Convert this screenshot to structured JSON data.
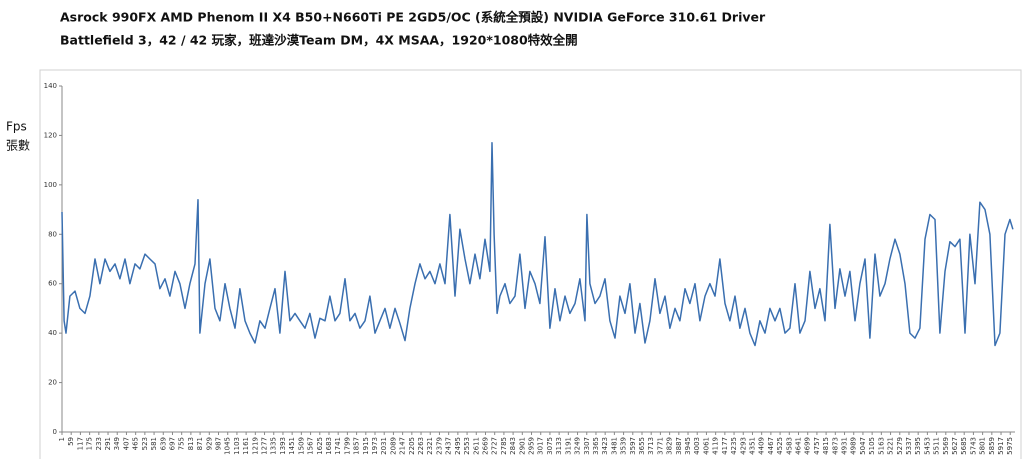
{
  "chart_data": {
    "type": "line",
    "title": "Asrock 990FX AMD Phenom II X4 B50+N660Ti PE 2GD5/OC (系統全預設) NVIDIA GeForce 310.61 Driver",
    "subtitle": "Battlefield 3，42 / 42 玩家，班達沙漠Team DM，4X MSAA，1920*1080特效全開",
    "ylabel": [
      "Fps",
      "張數"
    ],
    "xlim": [
      1,
      6005
    ],
    "ylim": [
      0,
      140
    ],
    "yticks": [
      0,
      20,
      40,
      60,
      80,
      100,
      120,
      140
    ],
    "xticks": [
      1,
      59,
      117,
      175,
      233,
      291,
      349,
      407,
      465,
      523,
      581,
      639,
      697,
      755,
      813,
      871,
      929,
      987,
      1045,
      1103,
      1161,
      1219,
      1277,
      1335,
      1393,
      1451,
      1509,
      1567,
      1625,
      1683,
      1741,
      1799,
      1857,
      1915,
      1973,
      2031,
      2089,
      2147,
      2205,
      2263,
      2321,
      2379,
      2437,
      2495,
      2553,
      2611,
      2669,
      2727,
      2785,
      2843,
      2901,
      2959,
      3017,
      3075,
      3133,
      3191,
      3249,
      3307,
      3365,
      3423,
      3481,
      3539,
      3597,
      3655,
      3713,
      3771,
      3829,
      3887,
      3945,
      4003,
      4061,
      4119,
      4177,
      4235,
      4293,
      4351,
      4409,
      4467,
      4525,
      4583,
      4641,
      4699,
      4757,
      4815,
      4873,
      4931,
      4989,
      5047,
      5105,
      5163,
      5221,
      5279,
      5337,
      5395,
      5453,
      5511,
      5569,
      5627,
      5685,
      5743,
      5801,
      5859,
      5917,
      5975
    ],
    "grid": false,
    "x": [
      1,
      14,
      26,
      51,
      83,
      114,
      146,
      177,
      209,
      240,
      272,
      303,
      335,
      366,
      398,
      429,
      461,
      492,
      524,
      555,
      587,
      618,
      650,
      681,
      713,
      744,
      776,
      807,
      839,
      858,
      870,
      902,
      933,
      965,
      996,
      1028,
      1059,
      1091,
      1122,
      1154,
      1185,
      1217,
      1248,
      1280,
      1311,
      1343,
      1374,
      1406,
      1437,
      1469,
      1500,
      1532,
      1563,
      1595,
      1626,
      1658,
      1689,
      1721,
      1752,
      1784,
      1815,
      1847,
      1878,
      1910,
      1941,
      1973,
      2004,
      2036,
      2067,
      2099,
      2130,
      2162,
      2193,
      2225,
      2256,
      2288,
      2319,
      2351,
      2382,
      2414,
      2445,
      2477,
      2508,
      2540,
      2571,
      2603,
      2634,
      2666,
      2697,
      2710,
      2723,
      2742,
      2760,
      2792,
      2823,
      2855,
      2886,
      2918,
      2949,
      2981,
      3012,
      3044,
      3075,
      3107,
      3138,
      3170,
      3201,
      3233,
      3264,
      3296,
      3308,
      3327,
      3359,
      3390,
      3422,
      3453,
      3485,
      3516,
      3548,
      3579,
      3611,
      3642,
      3674,
      3705,
      3737,
      3768,
      3800,
      3831,
      3863,
      3894,
      3926,
      3957,
      3989,
      4020,
      4052,
      4083,
      4115,
      4146,
      4178,
      4209,
      4241,
      4272,
      4304,
      4335,
      4367,
      4398,
      4430,
      4461,
      4493,
      4524,
      4556,
      4587,
      4619,
      4650,
      4682,
      4713,
      4745,
      4776,
      4808,
      4839,
      4871,
      4902,
      4934,
      4965,
      4997,
      5028,
      5060,
      5091,
      5123,
      5154,
      5186,
      5217,
      5249,
      5280,
      5312,
      5343,
      5375,
      5406,
      5438,
      5469,
      5501,
      5532,
      5564,
      5595,
      5627,
      5658,
      5690,
      5721,
      5753,
      5784,
      5816,
      5847,
      5879,
      5910,
      5942,
      5973,
      5992
    ],
    "series": [
      {
        "color": "#3a6fb0",
        "values": [
          89,
          45,
          40,
          55,
          57,
          50,
          48,
          55,
          70,
          60,
          70,
          65,
          68,
          62,
          70,
          60,
          68,
          66,
          72,
          70,
          68,
          58,
          62,
          55,
          65,
          60,
          50,
          60,
          68,
          94,
          40,
          60,
          70,
          50,
          45,
          60,
          50,
          42,
          58,
          45,
          40,
          36,
          45,
          42,
          50,
          58,
          40,
          65,
          45,
          48,
          45,
          42,
          48,
          38,
          46,
          45,
          55,
          45,
          48,
          62,
          45,
          48,
          42,
          45,
          55,
          40,
          45,
          50,
          42,
          50,
          44,
          37,
          50,
          60,
          68,
          62,
          65,
          60,
          68,
          60,
          88,
          55,
          82,
          70,
          60,
          72,
          62,
          78,
          65,
          117,
          80,
          48,
          55,
          60,
          52,
          55,
          72,
          50,
          65,
          60,
          52,
          79,
          42,
          58,
          45,
          55,
          48,
          52,
          62,
          45,
          88,
          60,
          52,
          55,
          62,
          45,
          38,
          55,
          48,
          60,
          40,
          52,
          36,
          45,
          62,
          48,
          55,
          42,
          50,
          45,
          58,
          52,
          60,
          45,
          55,
          60,
          55,
          70,
          52,
          45,
          55,
          42,
          50,
          40,
          35,
          45,
          40,
          50,
          45,
          50,
          40,
          42,
          60,
          40,
          45,
          65,
          50,
          58,
          45,
          84,
          50,
          66,
          55,
          65,
          45,
          60,
          70,
          38,
          72,
          55,
          60,
          70,
          78,
          72,
          60,
          40,
          38,
          42,
          78,
          88,
          86,
          40,
          65,
          77,
          75,
          78,
          40,
          80,
          60,
          93,
          90,
          80,
          35,
          40,
          80,
          86,
          82
        ]
      }
    ]
  }
}
